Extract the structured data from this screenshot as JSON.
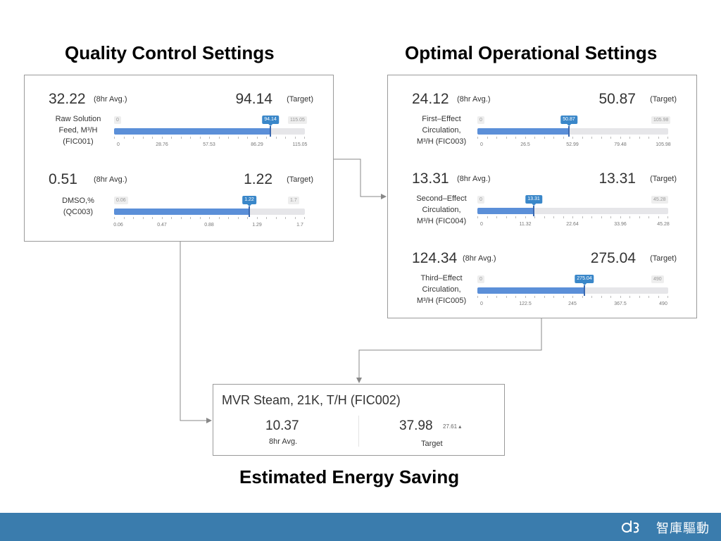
{
  "headings": {
    "quality": "Quality Control Settings",
    "optimal": "Optimal Operational Settings",
    "saving": "Estimated Energy Saving"
  },
  "quality_panel": [
    {
      "avg": "32.22",
      "avg_label": "(8hr Avg.)",
      "target": "94.14",
      "target_label": "(Target)",
      "desc": [
        "Raw Solution",
        "Feed, M³/H",
        "(FIC001)"
      ],
      "min": "0",
      "max": "115.05",
      "value_label": "94.14",
      "fraction": 0.818,
      "ticks": [
        "0",
        "28.76",
        "57.53",
        "86.29",
        "115.05"
      ]
    },
    {
      "avg": "0.51",
      "avg_label": "(8hr Avg.)",
      "target": "1.22",
      "target_label": "(Target)",
      "desc": [
        "DMSO,%",
        "(QC003)"
      ],
      "min": "0.06",
      "max": "1.7",
      "value_label": "1.22",
      "fraction": 0.707,
      "ticks": [
        "0.06",
        "0.47",
        "0.88",
        "1.29",
        "1.7"
      ]
    }
  ],
  "optimal_panel": [
    {
      "avg": "24.12",
      "avg_label": "(8hr Avg.)",
      "target": "50.87",
      "target_label": "(Target)",
      "desc": [
        "First–Effect",
        "Circulation,",
        "M³/H (FIC003)"
      ],
      "min": "0",
      "max": "105.98",
      "value_label": "50.87",
      "fraction": 0.48,
      "ticks": [
        "0",
        "26.5",
        "52.99",
        "79.48",
        "105.98"
      ]
    },
    {
      "avg": "13.31",
      "avg_label": "(8hr Avg.)",
      "target": "13.31",
      "target_label": "(Target)",
      "desc": [
        "Second–Effect",
        "Circulation,",
        "M³/H (FIC004)"
      ],
      "min": "0",
      "max": "45.28",
      "value_label": "13.31",
      "fraction": 0.294,
      "ticks": [
        "0",
        "11.32",
        "22.64",
        "33.96",
        "45.28"
      ]
    },
    {
      "avg": "124.34",
      "avg_label": "(8hr Avg.)",
      "target": "275.04",
      "target_label": "(Target)",
      "desc": [
        "Third–Effect",
        "Circulation,",
        "M³/H (FIC005)"
      ],
      "min": "0",
      "max": "490",
      "value_label": "275.04",
      "fraction": 0.561,
      "ticks": [
        "0",
        "122.5",
        "245",
        "367.5",
        "490"
      ]
    }
  ],
  "mvr": {
    "title": "MVR Steam, 21K, T/H (FIC002)",
    "avg": "10.37",
    "avg_label": "8hr Avg.",
    "target": "37.98",
    "target_label": "Target",
    "delta": "27.61 ▴"
  },
  "footer": {
    "brand": "智庫驅動",
    "icon": "dsp-logo-icon"
  },
  "colors": {
    "bar_fill": "#5b8fd8",
    "bubble": "#3a87c9",
    "footer": "#3a7cad"
  }
}
